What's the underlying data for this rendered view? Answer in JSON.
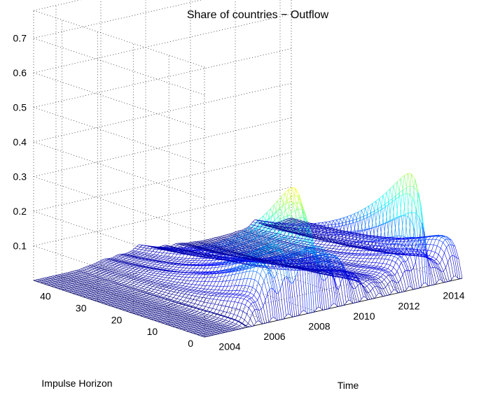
{
  "chart_data": {
    "type": "surface",
    "title": "Share of countries − Outflow",
    "xlabel": "Time",
    "ylabel": "Impulse Horizon",
    "zlabel": "",
    "x_ticks": [
      "2004",
      "2006",
      "2008",
      "2010",
      "2012",
      "2014"
    ],
    "y_ticks": [
      "0",
      "10",
      "20",
      "30",
      "40"
    ],
    "z_ticks": [
      "0.1",
      "0.2",
      "0.3",
      "0.4",
      "0.5",
      "0.6",
      "0.7"
    ],
    "xlim": [
      2003,
      2014.5
    ],
    "ylim": [
      0,
      48
    ],
    "zlim": [
      0,
      0.78
    ],
    "grid": true,
    "colormap": "jet",
    "mesh_color_range": [
      0,
      0.55
    ],
    "edge_line_color": "#0000ff",
    "surface_impact_profile": [
      [
        2003.0,
        0.0
      ],
      [
        2004.5,
        0.0
      ],
      [
        2005.0,
        0.02
      ],
      [
        2005.3,
        0.06
      ],
      [
        2005.6,
        0.1
      ],
      [
        2005.9,
        0.16
      ],
      [
        2006.2,
        0.22
      ],
      [
        2006.5,
        0.2
      ],
      [
        2006.8,
        0.27
      ],
      [
        2007.1,
        0.25
      ],
      [
        2007.4,
        0.3
      ],
      [
        2007.7,
        0.5
      ],
      [
        2008.0,
        0.38
      ],
      [
        2008.3,
        0.25
      ],
      [
        2008.6,
        0.2
      ],
      [
        2008.9,
        0.22
      ],
      [
        2009.1,
        0.12
      ],
      [
        2009.3,
        0.18
      ],
      [
        2009.6,
        0.15
      ],
      [
        2009.9,
        0.1
      ],
      [
        2010.2,
        0.08
      ],
      [
        2010.5,
        0.06
      ],
      [
        2010.8,
        0.04
      ],
      [
        2011.1,
        0.07
      ],
      [
        2011.4,
        0.05
      ],
      [
        2011.7,
        0.08
      ],
      [
        2012.0,
        0.1
      ],
      [
        2012.3,
        0.12
      ],
      [
        2012.6,
        0.2
      ],
      [
        2012.9,
        0.45
      ],
      [
        2013.2,
        0.14
      ],
      [
        2013.5,
        0.07
      ],
      [
        2013.8,
        0.09
      ],
      [
        2014.1,
        0.13
      ],
      [
        2014.4,
        0.16
      ]
    ],
    "horizon_decay_scale": 10
  }
}
